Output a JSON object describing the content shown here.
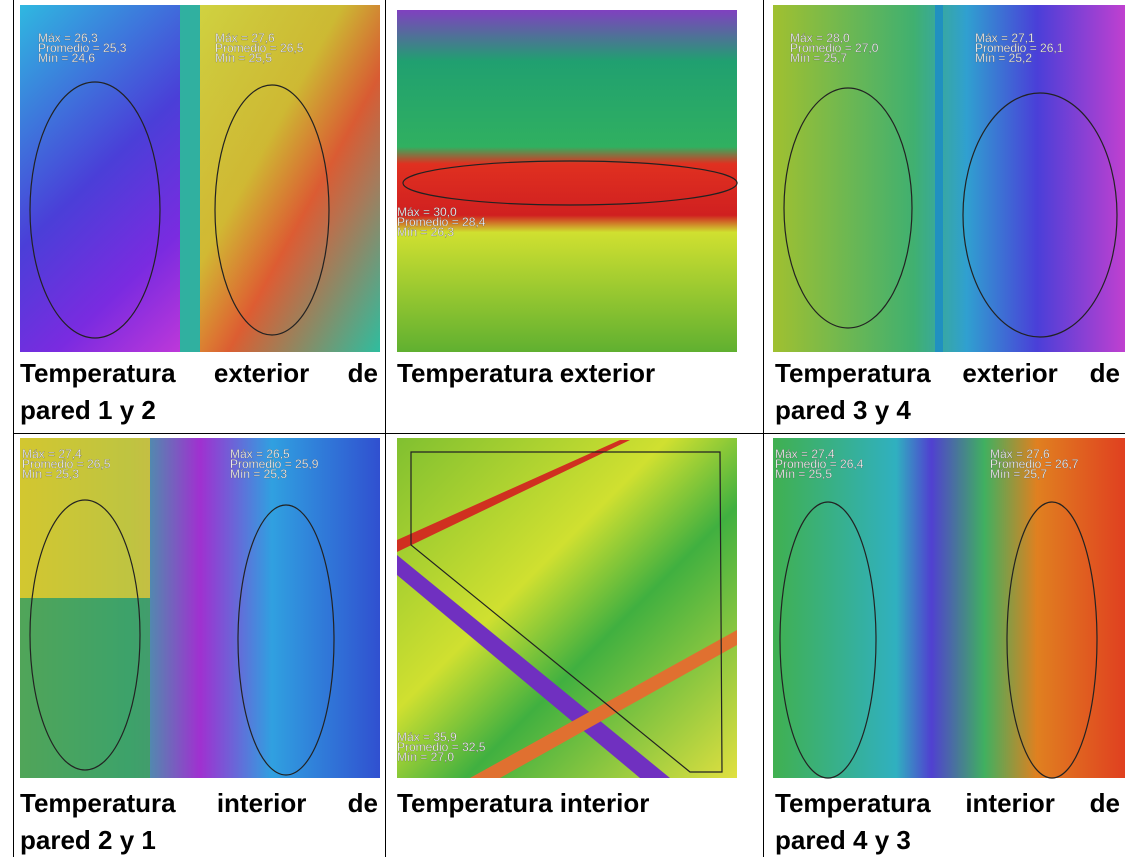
{
  "table": {
    "cells": [
      {
        "caption": "Temperatura exterior de pared 1 y 2",
        "readouts": [
          [
            "Máx = 26,3",
            "Promedio = 25,3",
            "Mín = 24,6"
          ],
          [
            "Máx = 27,6",
            "Promedio = 26,5",
            "Mín = 25,5"
          ]
        ]
      },
      {
        "caption": "Temperatura exterior",
        "readouts": [
          [
            "Máx = 30,0",
            "Promedio = 28,4",
            "Mín = 26,3"
          ]
        ]
      },
      {
        "caption": "Temperatura exterior de pared 3 y 4",
        "readouts": [
          [
            "Máx = 28,0",
            "Promedio = 27,0",
            "Mín = 25,7"
          ],
          [
            "Máx = 27,1",
            "Promedio = 26,1",
            "Mín = 25,2"
          ]
        ]
      },
      {
        "caption": "Temperatura interior de pared 2 y 1",
        "readouts": [
          [
            "Máx = 27,4",
            "Promedio = 26,5",
            "Mín = 25,3"
          ],
          [
            "Máx = 26,5",
            "Promedio = 25,9",
            "Mín = 25,3"
          ]
        ]
      },
      {
        "caption": "Temperatura interior",
        "readouts": [
          [
            "Máx = 35,9",
            "Promedio = 32,5",
            "Mín = 27,0"
          ]
        ]
      },
      {
        "caption": "Temperatura interior de pared 4 y 3",
        "readouts": [
          [
            "Máx = 27,4",
            "Promedio = 26,4",
            "Mín = 25,5"
          ],
          [
            "Máx = 27,6",
            "Promedio = 26,7",
            "Mín = 25,7"
          ]
        ]
      }
    ]
  }
}
